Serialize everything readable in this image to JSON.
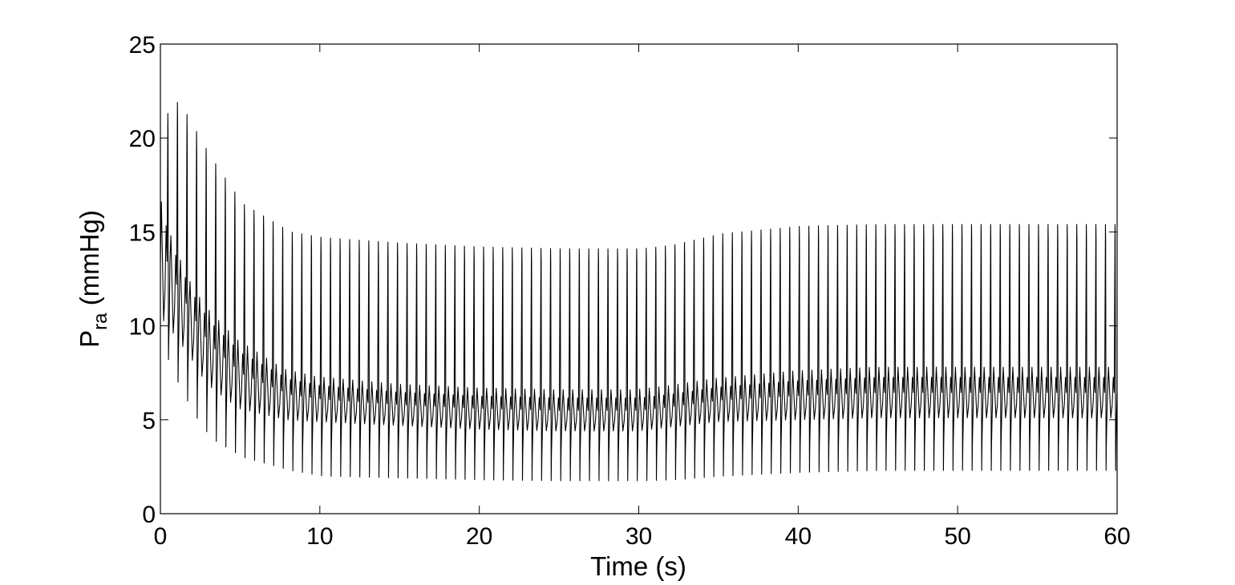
{
  "chart_data": {
    "type": "line",
    "title": "",
    "xlabel": "Time (s)",
    "ylabel_main": "P",
    "ylabel_sub": "ra",
    "ylabel_unit": " (mmHg)",
    "xlim": [
      0,
      60
    ],
    "ylim": [
      0,
      25
    ],
    "xticks": [
      0,
      10,
      20,
      30,
      40,
      50,
      60
    ],
    "yticks": [
      0,
      5,
      10,
      15,
      20,
      25
    ],
    "grid": false,
    "line_color": "#000000",
    "series": [
      {
        "period_s": 0.6,
        "envelope": {
          "t": [
            0,
            1,
            2,
            3,
            5,
            8,
            10,
            15,
            20,
            25,
            28,
            30,
            32,
            35,
            40,
            45,
            50,
            60
          ],
          "peak_max": [
            21,
            22,
            20.5,
            19,
            16.5,
            15.0,
            14.7,
            14.4,
            14.2,
            14.1,
            14.1,
            14.1,
            14.3,
            14.9,
            15.3,
            15.4,
            15.4,
            15.4
          ],
          "peak_min": [
            8.8,
            6.8,
            5.2,
            4.0,
            3.0,
            2.3,
            2.0,
            1.9,
            1.8,
            1.75,
            1.75,
            1.75,
            1.8,
            2.0,
            2.2,
            2.3,
            2.3,
            2.3
          ],
          "wave_max": [
            17.5,
            14.5,
            12.5,
            11.1,
            9.3,
            7.7,
            7.3,
            6.9,
            6.7,
            6.6,
            6.6,
            6.6,
            6.8,
            7.2,
            7.6,
            7.8,
            7.8,
            7.8
          ],
          "wave_min": [
            10.6,
            9.5,
            8.3,
            6.9,
            5.6,
            5.0,
            4.9,
            4.7,
            4.5,
            4.4,
            4.4,
            4.4,
            4.6,
            4.9,
            5.0,
            5.1,
            5.1,
            5.1
          ]
        }
      }
    ]
  }
}
